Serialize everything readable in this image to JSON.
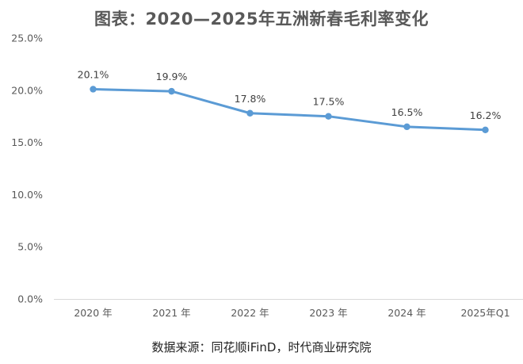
{
  "chart_data": {
    "type": "line",
    "title": "图表：2020—2025年五洲新春毛利率变化",
    "categories": [
      "2020 年",
      "2021 年",
      "2022 年",
      "2023 年",
      "2024 年",
      "2025年Q1"
    ],
    "series": [
      {
        "values": [
          20.1,
          19.9,
          17.8,
          17.5,
          16.5,
          16.2
        ],
        "data_labels": [
          "20.1%",
          "19.9%",
          "17.8%",
          "17.5%",
          "16.5%",
          "16.2%"
        ],
        "color": "#5B9BD5"
      }
    ],
    "ylim": [
      0,
      25
    ],
    "y_ticks": [
      0,
      5,
      10,
      15,
      20,
      25
    ],
    "y_tick_labels": [
      "0.0%",
      "5.0%",
      "10.0%",
      "15.0%",
      "20.0%",
      "25.0%"
    ],
    "grid": false,
    "legend": "none"
  },
  "source": "数据来源：同花顺iFinD，时代商业研究院"
}
